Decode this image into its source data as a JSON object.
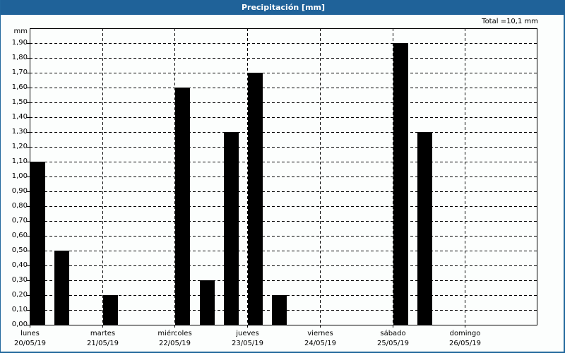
{
  "window": {
    "title": "Precipitación [mm]",
    "total_label": "Total =10,1 mm",
    "title_bar_color": "#1f6299"
  },
  "chart_data": {
    "type": "bar",
    "title": "Precipitación [mm]",
    "ylabel": "mm",
    "xlabel": "",
    "ylim": [
      0,
      1.9
    ],
    "y_ticks": [
      "0,00",
      "0,10",
      "0,20",
      "0,30",
      "0,40",
      "0,50",
      "0,60",
      "0,70",
      "0,80",
      "0,90",
      "1,00",
      "1,10",
      "1,20",
      "1,30",
      "1,40",
      "1,50",
      "1,60",
      "1,70",
      "1,80",
      "1,90"
    ],
    "grid": true,
    "annotation": "Total =10,1 mm",
    "days": [
      {
        "name": "lunes",
        "date": "20/05/19"
      },
      {
        "name": "martes",
        "date": "21/05/19"
      },
      {
        "name": "miércoles",
        "date": "22/05/19"
      },
      {
        "name": "jueves",
        "date": "23/05/19"
      },
      {
        "name": "viernes",
        "date": "24/05/19"
      },
      {
        "name": "sábado",
        "date": "25/05/19"
      },
      {
        "name": "domingo",
        "date": "26/05/19"
      }
    ],
    "slots_per_day": 3,
    "bars": [
      {
        "day": "lunes 20/05/19",
        "slot": 0,
        "value": 1.1
      },
      {
        "day": "lunes 20/05/19",
        "slot": 1,
        "value": 0.5
      },
      {
        "day": "martes 21/05/19",
        "slot": 3,
        "value": 0.2
      },
      {
        "day": "miércoles 22/05/19",
        "slot": 6,
        "value": 1.6
      },
      {
        "day": "miércoles 22/05/19",
        "slot": 7,
        "value": 0.3
      },
      {
        "day": "jueves 23/05/19",
        "slot": 8,
        "value": 1.3
      },
      {
        "day": "jueves 23/05/19",
        "slot": 9,
        "value": 1.7
      },
      {
        "day": "jueves 23/05/19",
        "slot": 10,
        "value": 0.2
      },
      {
        "day": "sábado 25/05/19",
        "slot": 15,
        "value": 1.9
      },
      {
        "day": "sábado 25/05/19",
        "slot": 16,
        "value": 1.3
      }
    ],
    "bar_color": "#000000",
    "total": 10.1
  }
}
